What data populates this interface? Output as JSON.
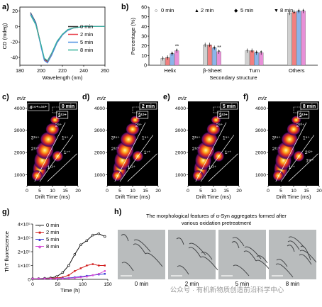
{
  "panels": {
    "a": {
      "label": "a)",
      "ylabel": "CD (mdeg)",
      "xlabel": "Wavelength (nm)",
      "xticks": [
        "180",
        "200",
        "220",
        "240",
        "260"
      ],
      "yticks": [
        "20",
        "0",
        "-20",
        "-40"
      ],
      "legend": [
        {
          "name": "0 min",
          "color": "#333333"
        },
        {
          "name": "2 min",
          "color": "#e8434f"
        },
        {
          "name": "5 min",
          "color": "#4a8fe0"
        },
        {
          "name": "8 min",
          "color": "#36b29a"
        }
      ]
    },
    "b": {
      "label": "b)",
      "ylabel": "Percentage (%)",
      "xlabel": "Secondary structure",
      "yticks": [
        "0",
        "10",
        "20",
        "30",
        "40",
        "50",
        "60"
      ],
      "legend": [
        {
          "name": "0 min",
          "marker": "○"
        },
        {
          "name": "2 min",
          "marker": "▲"
        },
        {
          "name": "5 min",
          "marker": "◆"
        },
        {
          "name": "8 min",
          "marker": "▼"
        }
      ],
      "sig": [
        "**",
        "**"
      ],
      "colors": [
        "#d0d0d0",
        "#f27f7f",
        "#8bb4ea",
        "#e890d8"
      ]
    },
    "drift": [
      {
        "label": "c)",
        "time": "0 min",
        "annot1": "4¹⁴⁺~¹⁶⁺",
        "annot2": "3¹¹⁺",
        "charges": [
          "2⁹⁺",
          "3¹⁵⁺",
          "1⁵⁺",
          "2¹³⁺",
          "1⁷⁺",
          "1¹²⁺"
        ]
      },
      {
        "label": "d)",
        "time": "2 min",
        "annot1": "",
        "annot2": "3¹²⁺",
        "charges": [
          "2⁹⁺",
          "3¹⁵⁺",
          "1⁵⁺",
          "2¹²⁺",
          "1⁷⁺",
          "1¹²⁺"
        ]
      },
      {
        "label": "e)",
        "time": "5 min",
        "annot1": "",
        "annot2": "3¹²⁺",
        "charges": [
          "2⁹⁺",
          "3¹⁵⁺",
          "1⁵⁺",
          "2¹²⁺",
          "1⁷⁺",
          "1¹²⁺"
        ]
      },
      {
        "label": "f)",
        "time": "8 min",
        "annot1": "",
        "annot2": "3¹³⁺",
        "charges": [
          "2¹⁰⁺",
          "3¹⁵⁺",
          "1⁵⁺",
          "2¹¹⁺",
          "2¹²⁺",
          "1⁷⁺",
          "1¹²⁺"
        ]
      }
    ],
    "drift_axis": {
      "ylabel": "m/z",
      "xlabel": "Drift Time (ms)",
      "xticks": [
        "0",
        "5",
        "10",
        "15",
        "20"
      ],
      "yticks": [
        "4000",
        "3000",
        "2000",
        "1000"
      ]
    },
    "g": {
      "label": "g)",
      "ylabel": "ThT fluorescence",
      "xlabel": "Time (h)",
      "xticks": [
        "0",
        "50",
        "100",
        "150"
      ],
      "yticks": [
        "0",
        "1×10⁵",
        "2×10⁵",
        "3×10⁵",
        "4×10⁵"
      ],
      "legend": [
        {
          "name": "0 min",
          "color": "#111111",
          "marker": "○"
        },
        {
          "name": "2 min",
          "color": "#d11a1a",
          "marker": "■"
        },
        {
          "name": "5 min",
          "color": "#3b3fd6",
          "marker": "▲"
        },
        {
          "name": "8 min",
          "color": "#d64fd6",
          "marker": "◆"
        }
      ]
    },
    "h": {
      "label": "h)",
      "title_line1": "The morphological features of α-Syn aggregates formed after",
      "title_line2": "various oxidation pretreatment",
      "images": [
        "0 min",
        "2 min",
        "5 min",
        "8 min"
      ],
      "watermark": "公众号 · 有机新物质创造前沿科学中心"
    }
  },
  "chart_data": [
    {
      "panel": "a",
      "type": "line",
      "xlabel": "Wavelength (nm)",
      "ylabel": "CD (mdeg)",
      "xlim": [
        180,
        260
      ],
      "ylim": [
        -50,
        25
      ],
      "series": [
        {
          "name": "0 min",
          "x": [
            190,
            195,
            200,
            203,
            206,
            210,
            215,
            220,
            225,
            230,
            240,
            250,
            260
          ],
          "y": [
            18,
            5,
            -25,
            -42,
            -45,
            -35,
            -20,
            -10,
            -5,
            -2,
            0,
            0,
            0
          ]
        },
        {
          "name": "2 min",
          "x": [
            190,
            195,
            200,
            203,
            206,
            210,
            215,
            220,
            225,
            230,
            240,
            250,
            260
          ],
          "y": [
            16,
            3,
            -26,
            -43,
            -46,
            -36,
            -21,
            -11,
            -5,
            -2,
            0,
            0,
            0
          ]
        },
        {
          "name": "5 min",
          "x": [
            190,
            195,
            200,
            203,
            206,
            210,
            215,
            220,
            225,
            230,
            240,
            250,
            260
          ],
          "y": [
            17,
            4,
            -27,
            -44,
            -47,
            -37,
            -21,
            -11,
            -5,
            -2,
            0,
            0,
            0
          ]
        },
        {
          "name": "8 min",
          "x": [
            190,
            195,
            200,
            203,
            206,
            210,
            215,
            220,
            225,
            230,
            240,
            250,
            260
          ],
          "y": [
            15,
            2,
            -24,
            -41,
            -44,
            -34,
            -19,
            -10,
            -4,
            -2,
            0,
            0,
            0
          ]
        }
      ]
    },
    {
      "panel": "b",
      "type": "bar",
      "categories": [
        "Helix",
        "β-Sheet",
        "Turn",
        "Others"
      ],
      "xlabel": "Secondary structure",
      "ylabel": "Percentage (%)",
      "ylim": [
        0,
        60
      ],
      "series": [
        {
          "name": "0 min",
          "values": [
            7,
            21,
            15,
            54
          ]
        },
        {
          "name": "2 min",
          "values": [
            8,
            21,
            15,
            55
          ]
        },
        {
          "name": "5 min",
          "values": [
            12,
            18,
            13,
            56
          ]
        },
        {
          "name": "8 min",
          "values": [
            15,
            14,
            13,
            56
          ]
        }
      ]
    },
    {
      "panel": "g",
      "type": "line",
      "xlabel": "Time (h)",
      "ylabel": "ThT fluorescence",
      "xlim": [
        0,
        150
      ],
      "ylim": [
        0,
        400000
      ],
      "series": [
        {
          "name": "0 min",
          "x": [
            0,
            12,
            24,
            36,
            48,
            60,
            72,
            84,
            96,
            108,
            120,
            132,
            144
          ],
          "y": [
            5000,
            5000,
            8000,
            10000,
            20000,
            50000,
            100000,
            180000,
            250000,
            280000,
            320000,
            330000,
            310000
          ]
        },
        {
          "name": "2 min",
          "x": [
            0,
            12,
            24,
            36,
            48,
            60,
            72,
            84,
            96,
            108,
            120,
            132,
            144
          ],
          "y": [
            5000,
            5000,
            5000,
            8000,
            10000,
            15000,
            30000,
            60000,
            80000,
            100000,
            110000,
            100000,
            100000
          ]
        },
        {
          "name": "5 min",
          "x": [
            0,
            12,
            24,
            36,
            48,
            60,
            72,
            84,
            96,
            108,
            120,
            132,
            144
          ],
          "y": [
            5000,
            5000,
            5000,
            5000,
            5000,
            8000,
            10000,
            15000,
            20000,
            25000,
            30000,
            35000,
            40000
          ]
        },
        {
          "name": "8 min",
          "x": [
            0,
            12,
            24,
            36,
            48,
            60,
            72,
            84,
            96,
            108,
            120,
            132,
            144
          ],
          "y": [
            5000,
            5000,
            5000,
            5000,
            5000,
            5000,
            8000,
            10000,
            15000,
            20000,
            30000,
            40000,
            60000
          ]
        }
      ]
    }
  ]
}
